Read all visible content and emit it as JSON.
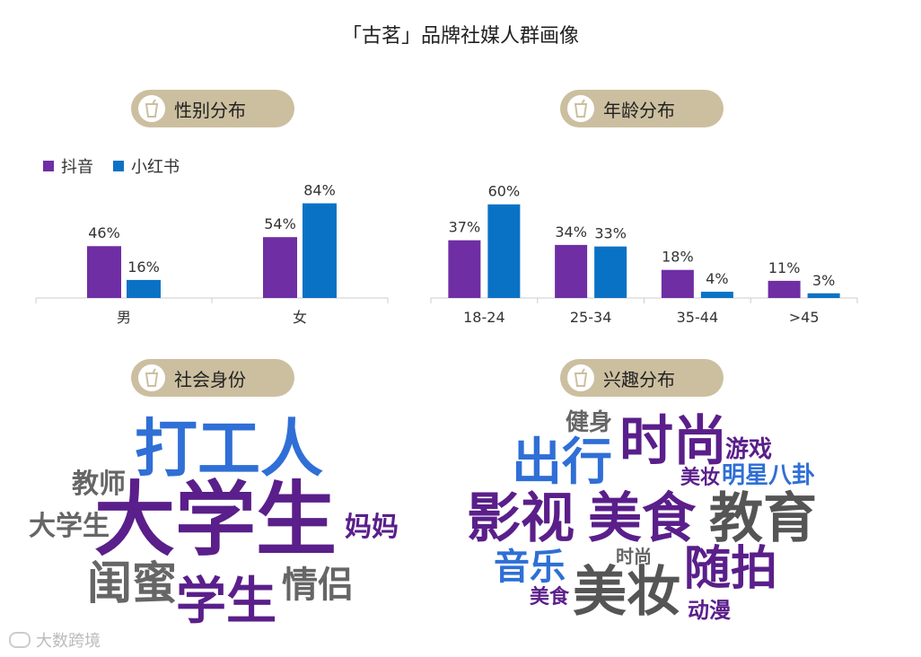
{
  "page": {
    "title": "「古茗」品牌社媒人群画像"
  },
  "sections": {
    "gender": "性别分布",
    "age": "年龄分布",
    "identity": "社会身份",
    "interest": "兴趣分布"
  },
  "legend": [
    {
      "name": "抖音",
      "color": "#6f2ea3"
    },
    {
      "name": "小红书",
      "color": "#0a72c5"
    }
  ],
  "chart_data": [
    {
      "type": "bar",
      "categories": [
        "男",
        "女"
      ],
      "series": [
        {
          "name": "抖音",
          "values": [
            46,
            54
          ],
          "labels": [
            "46%",
            "54%"
          ],
          "color": "#6f2ea3"
        },
        {
          "name": "小红书",
          "values": [
            16,
            84
          ],
          "labels": [
            "16%",
            "84%"
          ],
          "color": "#0a72c5"
        }
      ],
      "ylim": [
        0,
        90
      ]
    },
    {
      "type": "bar",
      "categories": [
        "18-24",
        "25-34",
        "35-44",
        ">45"
      ],
      "series": [
        {
          "name": "抖音",
          "values": [
            37,
            34,
            18,
            11
          ],
          "labels": [
            "37%",
            "34%",
            "18%",
            "11%"
          ],
          "color": "#6f2ea3"
        },
        {
          "name": "小红书",
          "values": [
            60,
            33,
            4,
            3
          ],
          "labels": [
            "60%",
            "33%",
            "4%",
            "3%"
          ],
          "color": "#0a72c5"
        }
      ],
      "ylim": [
        0,
        65
      ]
    }
  ],
  "identity_cloud": [
    {
      "text": "打工人",
      "color": "#2f6fd6"
    },
    {
      "text": "教师",
      "color": "#666666"
    },
    {
      "text": "大学生",
      "color": "#666666"
    },
    {
      "text": "大学生",
      "color": "#5a1f8a"
    },
    {
      "text": "妈妈",
      "color": "#5a1f8a"
    },
    {
      "text": "闺蜜",
      "color": "#666666"
    },
    {
      "text": "学生",
      "color": "#5a1f8a"
    },
    {
      "text": "情侣",
      "color": "#666666"
    }
  ],
  "interest_cloud": [
    {
      "text": "健身",
      "color": "#666666"
    },
    {
      "text": "出行",
      "color": "#2f6fd6"
    },
    {
      "text": "时尚",
      "color": "#5a1f8a"
    },
    {
      "text": "游戏",
      "color": "#5a1f8a"
    },
    {
      "text": "美妆",
      "color": "#5a1f8a"
    },
    {
      "text": "明星八卦",
      "color": "#2f6fd6"
    },
    {
      "text": "影视",
      "color": "#5a1f8a"
    },
    {
      "text": "美食",
      "color": "#5a1f8a"
    },
    {
      "text": "教育",
      "color": "#555555"
    },
    {
      "text": "音乐",
      "color": "#2f6fd6"
    },
    {
      "text": "时尚",
      "color": "#666666"
    },
    {
      "text": "随拍",
      "color": "#5a1f8a"
    },
    {
      "text": "美食",
      "color": "#5a1f8a"
    },
    {
      "text": "美妆",
      "color": "#555555"
    },
    {
      "text": "动漫",
      "color": "#5a1f8a"
    }
  ],
  "watermark": "大数跨境",
  "colors": {
    "pill": "#ccbfa0",
    "douyin": "#6f2ea3",
    "xiaohongshu": "#0a72c5",
    "axis": "#cccccc"
  }
}
